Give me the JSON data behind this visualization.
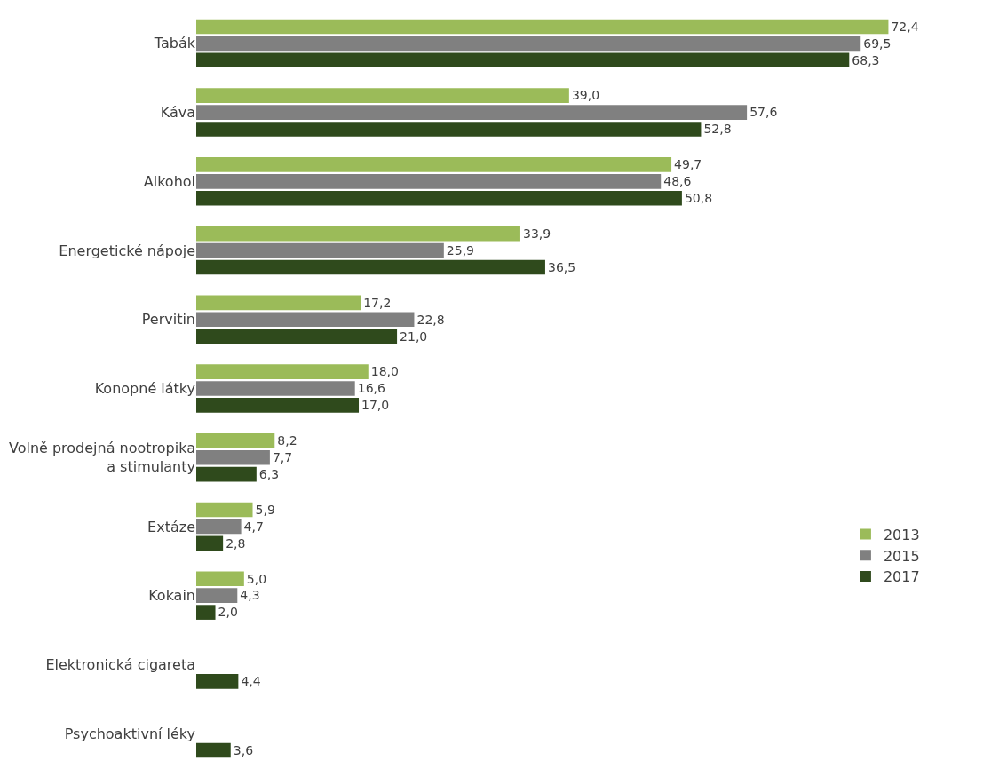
{
  "chart_data": {
    "type": "bar",
    "orientation": "horizontal",
    "legend": "right",
    "categories": [
      "Tabák",
      "Káva",
      "Alkohol",
      "Energetické nápoje",
      "Pervitin",
      "Konopné látky",
      "Volně prodejná nootropika a stimulanty",
      "Extáze",
      "Kokain",
      "Elektronická cigareta",
      "Psychoaktivní léky"
    ],
    "series": [
      {
        "name": "2013",
        "color": "#9bbb59",
        "values": [
          72.4,
          39.0,
          49.7,
          33.9,
          17.2,
          18.0,
          8.2,
          5.9,
          5.0,
          null,
          null
        ],
        "value_labels": [
          "72,4",
          "39,0",
          "49,7",
          "33,9",
          "17,2",
          "18,0",
          "8,2",
          "5,9",
          "5,0",
          null,
          null
        ]
      },
      {
        "name": "2015",
        "color": "#808080",
        "values": [
          69.5,
          57.6,
          48.6,
          25.9,
          22.8,
          16.6,
          7.7,
          4.7,
          4.3,
          null,
          null
        ],
        "value_labels": [
          "69,5",
          "57,6",
          "48,6",
          "25,9",
          "22,8",
          "16,6",
          "7,7",
          "4,7",
          "4,3",
          null,
          null
        ]
      },
      {
        "name": "2017",
        "color": "#2f4a1c",
        "values": [
          68.3,
          52.8,
          50.8,
          36.5,
          21.0,
          17.0,
          6.3,
          2.8,
          2.0,
          4.4,
          3.6
        ],
        "value_labels": [
          "68,3",
          "52,8",
          "50,8",
          "36,5",
          "21,0",
          "17,0",
          "6,3",
          "2,8",
          "2,0",
          "4,4",
          "3,6"
        ]
      }
    ]
  }
}
